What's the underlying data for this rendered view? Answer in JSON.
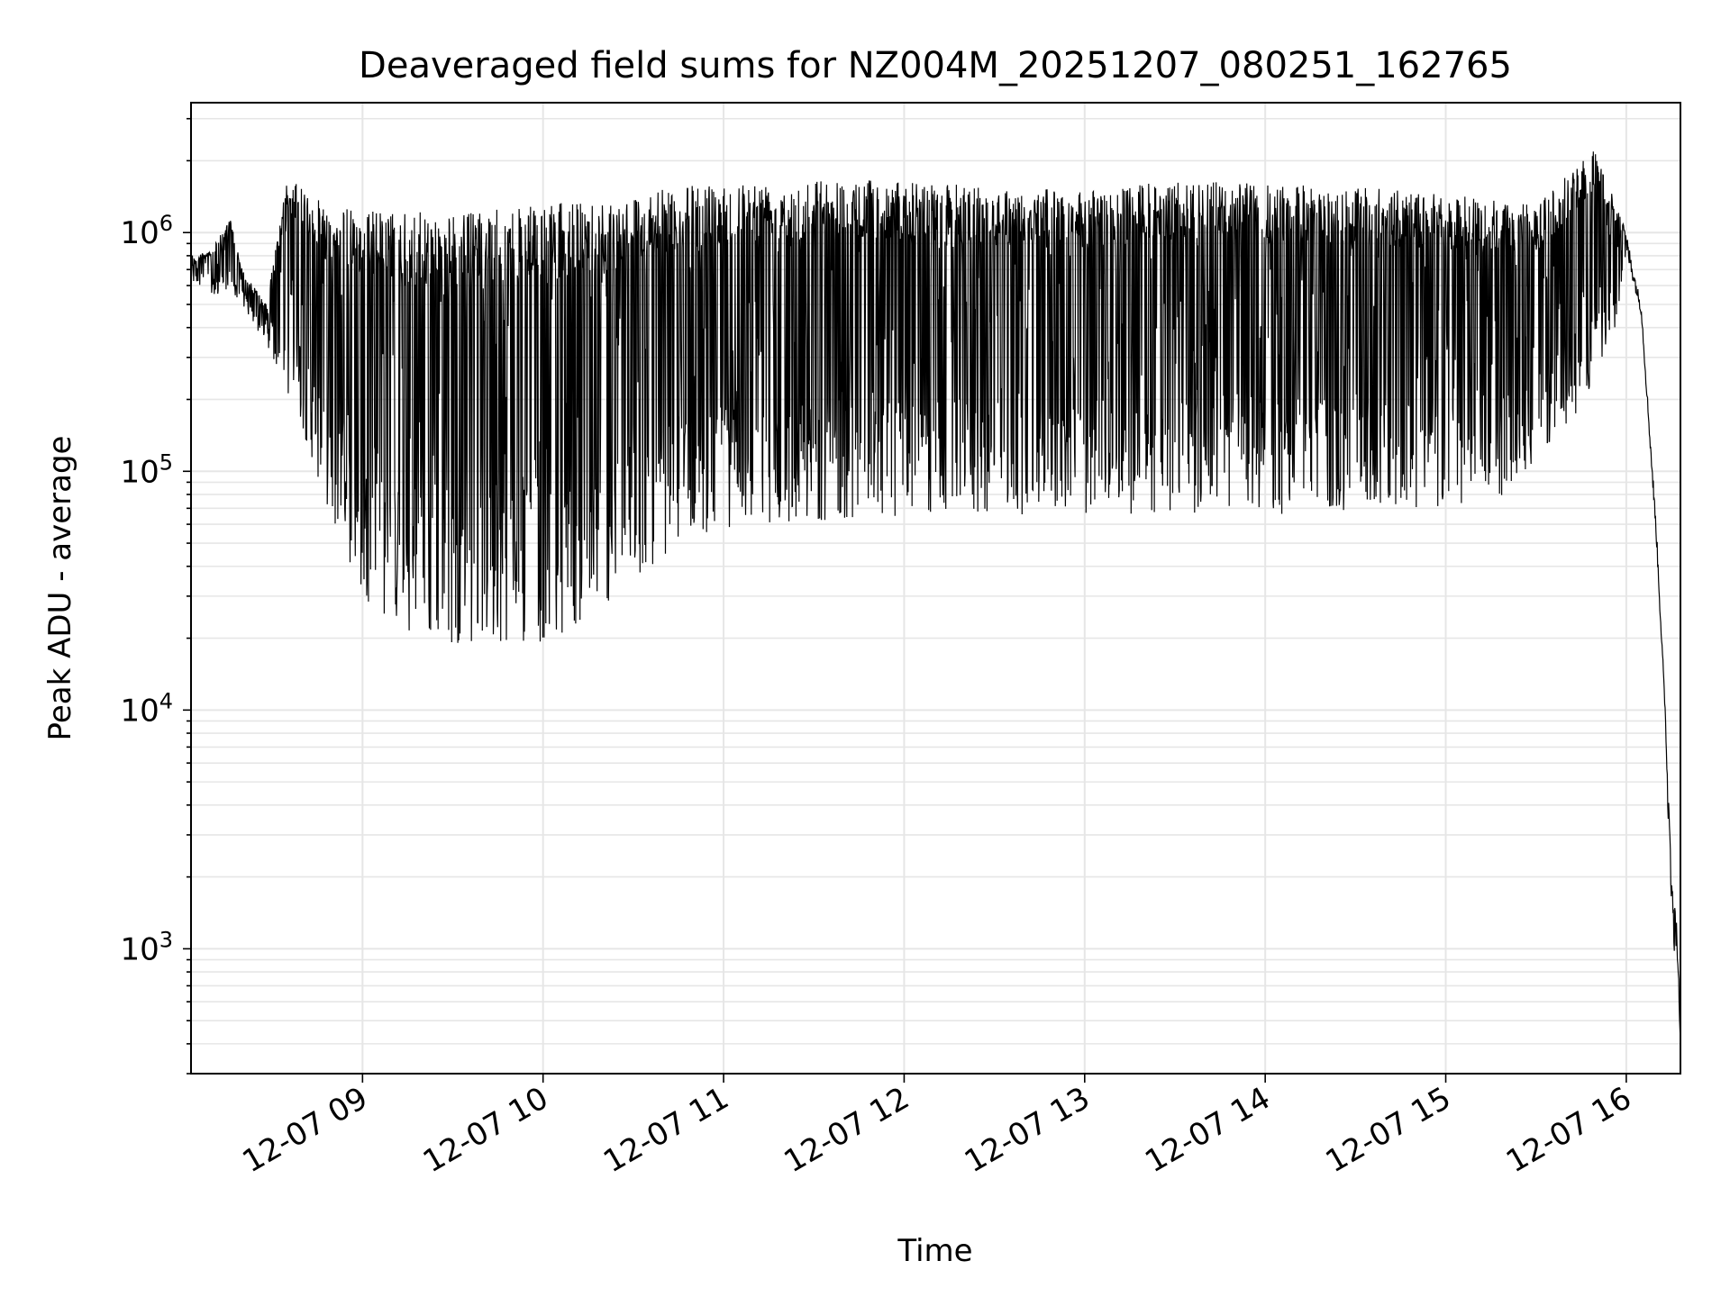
{
  "chart_data": {
    "type": "line",
    "title": "Deaveraged field sums for NZ004M_20251207_080251_162765",
    "xlabel": "Time",
    "ylabel": "Peak ADU - average",
    "yscale": "log",
    "grid": true,
    "line_color": "#000000",
    "grid_color": "#e6e6e6",
    "x_range": [
      "2025-12-07 08:03",
      "2025-12-07 16:18"
    ],
    "y_range": [
      300,
      3500000
    ],
    "x_ticks": [
      "12-07 09",
      "12-07 10",
      "12-07 11",
      "12-07 12",
      "12-07 13",
      "12-07 14",
      "12-07 15",
      "12-07 16"
    ],
    "y_ticks": [
      {
        "base": "10",
        "exp": "3",
        "value": 1000
      },
      {
        "base": "10",
        "exp": "4",
        "value": 10000
      },
      {
        "base": "10",
        "exp": "5",
        "value": 100000
      },
      {
        "base": "10",
        "exp": "6",
        "value": 1000000
      }
    ],
    "series": [
      {
        "envelope_upper": [
          [
            "2025-12-07 08:03",
            800000
          ],
          [
            "2025-12-07 08:10",
            850000
          ],
          [
            "2025-12-07 08:16",
            1150000
          ],
          [
            "2025-12-07 08:20",
            700000
          ],
          [
            "2025-12-07 08:28",
            500000
          ],
          [
            "2025-12-07 08:35",
            1700000
          ],
          [
            "2025-12-07 08:48",
            1300000
          ],
          [
            "2025-12-07 09:00",
            1250000
          ],
          [
            "2025-12-07 09:30",
            1200000
          ],
          [
            "2025-12-07 10:00",
            1300000
          ],
          [
            "2025-12-07 10:30",
            1450000
          ],
          [
            "2025-12-07 11:00",
            1650000
          ],
          [
            "2025-12-07 11:30",
            1700000
          ],
          [
            "2025-12-07 12:00",
            1650000
          ],
          [
            "2025-12-07 12:30",
            1550000
          ],
          [
            "2025-12-07 13:00",
            1500000
          ],
          [
            "2025-12-07 13:30",
            1650000
          ],
          [
            "2025-12-07 14:00",
            1600000
          ],
          [
            "2025-12-07 14:30",
            1550000
          ],
          [
            "2025-12-07 15:00",
            1450000
          ],
          [
            "2025-12-07 15:30",
            1300000
          ],
          [
            "2025-12-07 15:50",
            2300000
          ],
          [
            "2025-12-07 16:00",
            1000000
          ],
          [
            "2025-12-07 16:05",
            500000
          ],
          [
            "2025-12-07 16:10",
            60000
          ],
          [
            "2025-12-07 16:13",
            10000
          ],
          [
            "2025-12-07 16:15",
            2000
          ],
          [
            "2025-12-07 16:17",
            1200
          ],
          [
            "2025-12-07 16:18",
            400
          ]
        ],
        "envelope_lower": [
          [
            "2025-12-07 08:03",
            600000
          ],
          [
            "2025-12-07 08:20",
            500000
          ],
          [
            "2025-12-07 08:30",
            300000
          ],
          [
            "2025-12-07 08:40",
            150000
          ],
          [
            "2025-12-07 08:50",
            60000
          ],
          [
            "2025-12-07 09:00",
            30000
          ],
          [
            "2025-12-07 09:15",
            20000
          ],
          [
            "2025-12-07 09:30",
            19000
          ],
          [
            "2025-12-07 09:45",
            19000
          ],
          [
            "2025-12-07 10:00",
            19000
          ],
          [
            "2025-12-07 10:15",
            24000
          ],
          [
            "2025-12-07 10:30",
            34000
          ],
          [
            "2025-12-07 10:45",
            50000
          ],
          [
            "2025-12-07 11:00",
            58000
          ],
          [
            "2025-12-07 11:30",
            62000
          ],
          [
            "2025-12-07 12:00",
            65000
          ],
          [
            "2025-12-07 12:30",
            66000
          ],
          [
            "2025-12-07 13:00",
            66000
          ],
          [
            "2025-12-07 13:30",
            66000
          ],
          [
            "2025-12-07 14:00",
            66000
          ],
          [
            "2025-12-07 14:30",
            66000
          ],
          [
            "2025-12-07 15:00",
            66000
          ],
          [
            "2025-12-07 15:20",
            80000
          ],
          [
            "2025-12-07 15:40",
            150000
          ],
          [
            "2025-12-07 15:55",
            300000
          ],
          [
            "2025-12-07 16:00",
            800000
          ],
          [
            "2025-12-07 16:05",
            450000
          ],
          [
            "2025-12-07 16:10",
            50000
          ],
          [
            "2025-12-07 16:13",
            9000
          ],
          [
            "2025-12-07 16:15",
            1000
          ],
          [
            "2025-12-07 16:17",
            900
          ],
          [
            "2025-12-07 16:18",
            400
          ]
        ]
      }
    ]
  }
}
